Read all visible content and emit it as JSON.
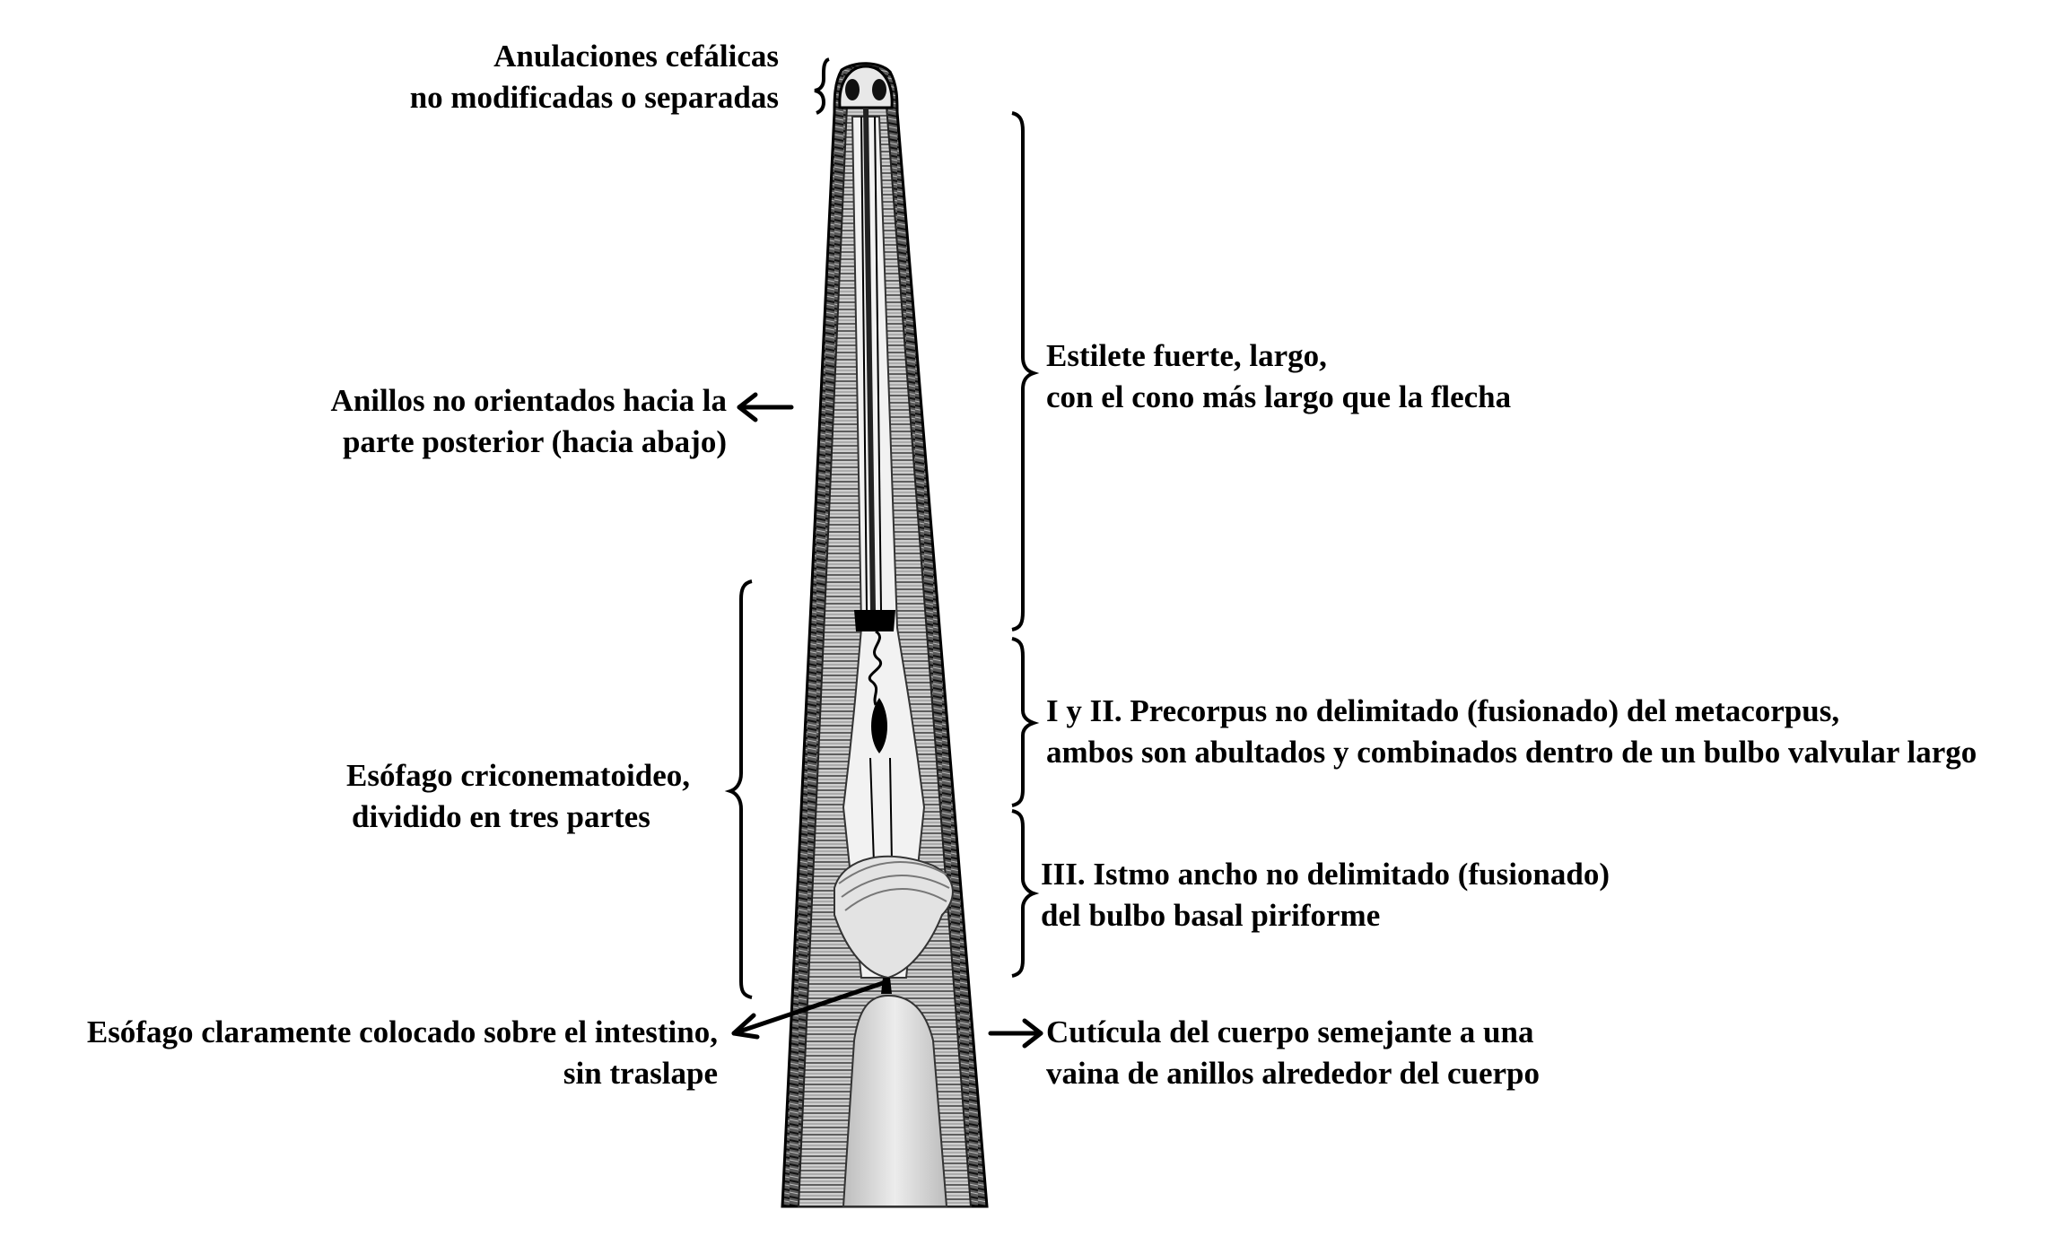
{
  "labels": {
    "cephalic": {
      "line1": "Anulaciones cefálicas",
      "line2": "no modificadas o separadas"
    },
    "rings": {
      "line1": "Anillos no orientados hacia la",
      "line2": "parte posterior (hacia abajo)"
    },
    "stylet": {
      "line1": "Estilete fuerte, largo,",
      "line2": "con el cono más largo que la flecha"
    },
    "precorpus": {
      "line1": "I y II. Precorpus no delimitado (fusionado) del metacorpus,",
      "line2": "ambos son abultados y combinados dentro de un bulbo valvular largo"
    },
    "esophagus": {
      "line1": "Esófago criconematoideo,",
      "line2": "dividido en tres partes"
    },
    "isthmus": {
      "line1": "III. Istmo ancho no delimitado (fusionado)",
      "line2": "del bulbo basal piriforme"
    },
    "placement": {
      "line1": "Esófago claramente colocado sobre el intestino,",
      "line2": "sin traslape"
    },
    "cuticle": {
      "line1": "Cutícula del cuerpo semejante a una",
      "line2": "vaina de anillos alrededor del cuerpo"
    }
  },
  "colors": {
    "ink": "#000000",
    "body_fill": "#d9d9d9",
    "body_dark": "#4a4a4a",
    "intestine": "#e6e6e6"
  }
}
